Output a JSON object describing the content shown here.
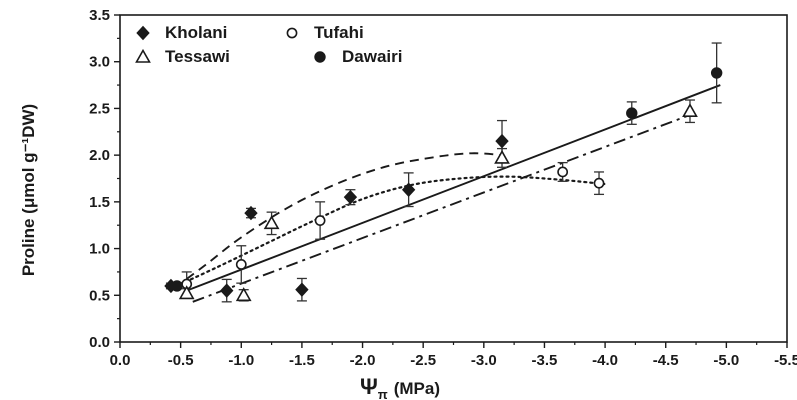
{
  "chart_data": {
    "type": "scatter",
    "title": "",
    "xlabel": "Ψ",
    "xlabel_sub": "π",
    "xlabel_unit": "(MPa)",
    "ylabel": "Proline (μmol g⁻¹DW)",
    "xlim": [
      0.0,
      -5.5
    ],
    "ylim": [
      0.0,
      3.5
    ],
    "x_ticks": [
      "0.0",
      "-0.5",
      "-1.0",
      "-1.5",
      "-2.0",
      "-2.5",
      "-3.0",
      "-3.5",
      "-4.0",
      "-4.5",
      "-5.0",
      "-5.5"
    ],
    "y_ticks": [
      "0.0",
      "0.5",
      "1.0",
      "1.5",
      "2.0",
      "2.5",
      "3.0",
      "3.5"
    ],
    "grid": false,
    "legend_position": "top-left",
    "series": [
      {
        "name": "Kholani",
        "marker": "diamond-filled",
        "points": [
          {
            "x": -0.42,
            "y": 0.6,
            "err": 0.03
          },
          {
            "x": -1.08,
            "y": 1.38,
            "err": 0.05
          },
          {
            "x": -0.88,
            "y": 0.55,
            "err": 0.12
          },
          {
            "x": -1.5,
            "y": 0.56,
            "err": 0.12
          },
          {
            "x": -1.9,
            "y": 1.55,
            "err": 0.08
          },
          {
            "x": -2.38,
            "y": 1.63,
            "err": 0.18
          },
          {
            "x": -3.15,
            "y": 2.15,
            "err": 0.22
          }
        ],
        "fit": {
          "style": "solid",
          "x": [
            -0.55,
            -4.95
          ],
          "y": [
            0.55,
            2.75
          ]
        }
      },
      {
        "name": "Tufahi",
        "marker": "circle-open",
        "points": [
          {
            "x": -0.55,
            "y": 0.62,
            "err": 0.13
          },
          {
            "x": -1.0,
            "y": 0.83,
            "err": 0.2
          },
          {
            "x": -1.65,
            "y": 1.3,
            "err": 0.2
          },
          {
            "x": -3.65,
            "y": 1.82,
            "err": 0.1
          },
          {
            "x": -3.95,
            "y": 1.7,
            "err": 0.12
          }
        ],
        "fit": {
          "style": "dotted",
          "x": [
            -0.45,
            -0.8,
            -1.2,
            -1.6,
            -2.0,
            -2.4,
            -2.8,
            -3.2,
            -3.6,
            -4.0
          ],
          "y": [
            0.59,
            0.8,
            1.05,
            1.3,
            1.53,
            1.68,
            1.75,
            1.77,
            1.74,
            1.69
          ]
        }
      },
      {
        "name": "Tessawi",
        "marker": "triangle-open",
        "points": [
          {
            "x": -0.55,
            "y": 0.52,
            "err": 0.05
          },
          {
            "x": -1.02,
            "y": 0.5,
            "err": 0.06
          },
          {
            "x": -1.25,
            "y": 1.27,
            "err": 0.12
          },
          {
            "x": -3.15,
            "y": 1.97,
            "err": 0.1
          },
          {
            "x": -4.7,
            "y": 2.47,
            "err": 0.12
          }
        ],
        "fit": {
          "style": "dash-dot",
          "x": [
            -0.6,
            -4.7
          ],
          "y": [
            0.43,
            2.43
          ]
        }
      },
      {
        "name": "Dawairi",
        "marker": "circle-filled",
        "points": [
          {
            "x": -0.47,
            "y": 0.6,
            "err": 0.03
          },
          {
            "x": -4.22,
            "y": 2.45,
            "err": 0.12
          },
          {
            "x": -4.92,
            "y": 2.88,
            "err": 0.32
          }
        ],
        "fit": {
          "style": "dashed",
          "x": [
            -0.45,
            -0.7,
            -1.0,
            -1.4,
            -1.8,
            -2.2,
            -2.6,
            -2.9,
            -3.15
          ],
          "y": [
            0.58,
            0.82,
            1.12,
            1.45,
            1.7,
            1.88,
            1.98,
            2.02,
            2.0
          ]
        }
      }
    ]
  }
}
